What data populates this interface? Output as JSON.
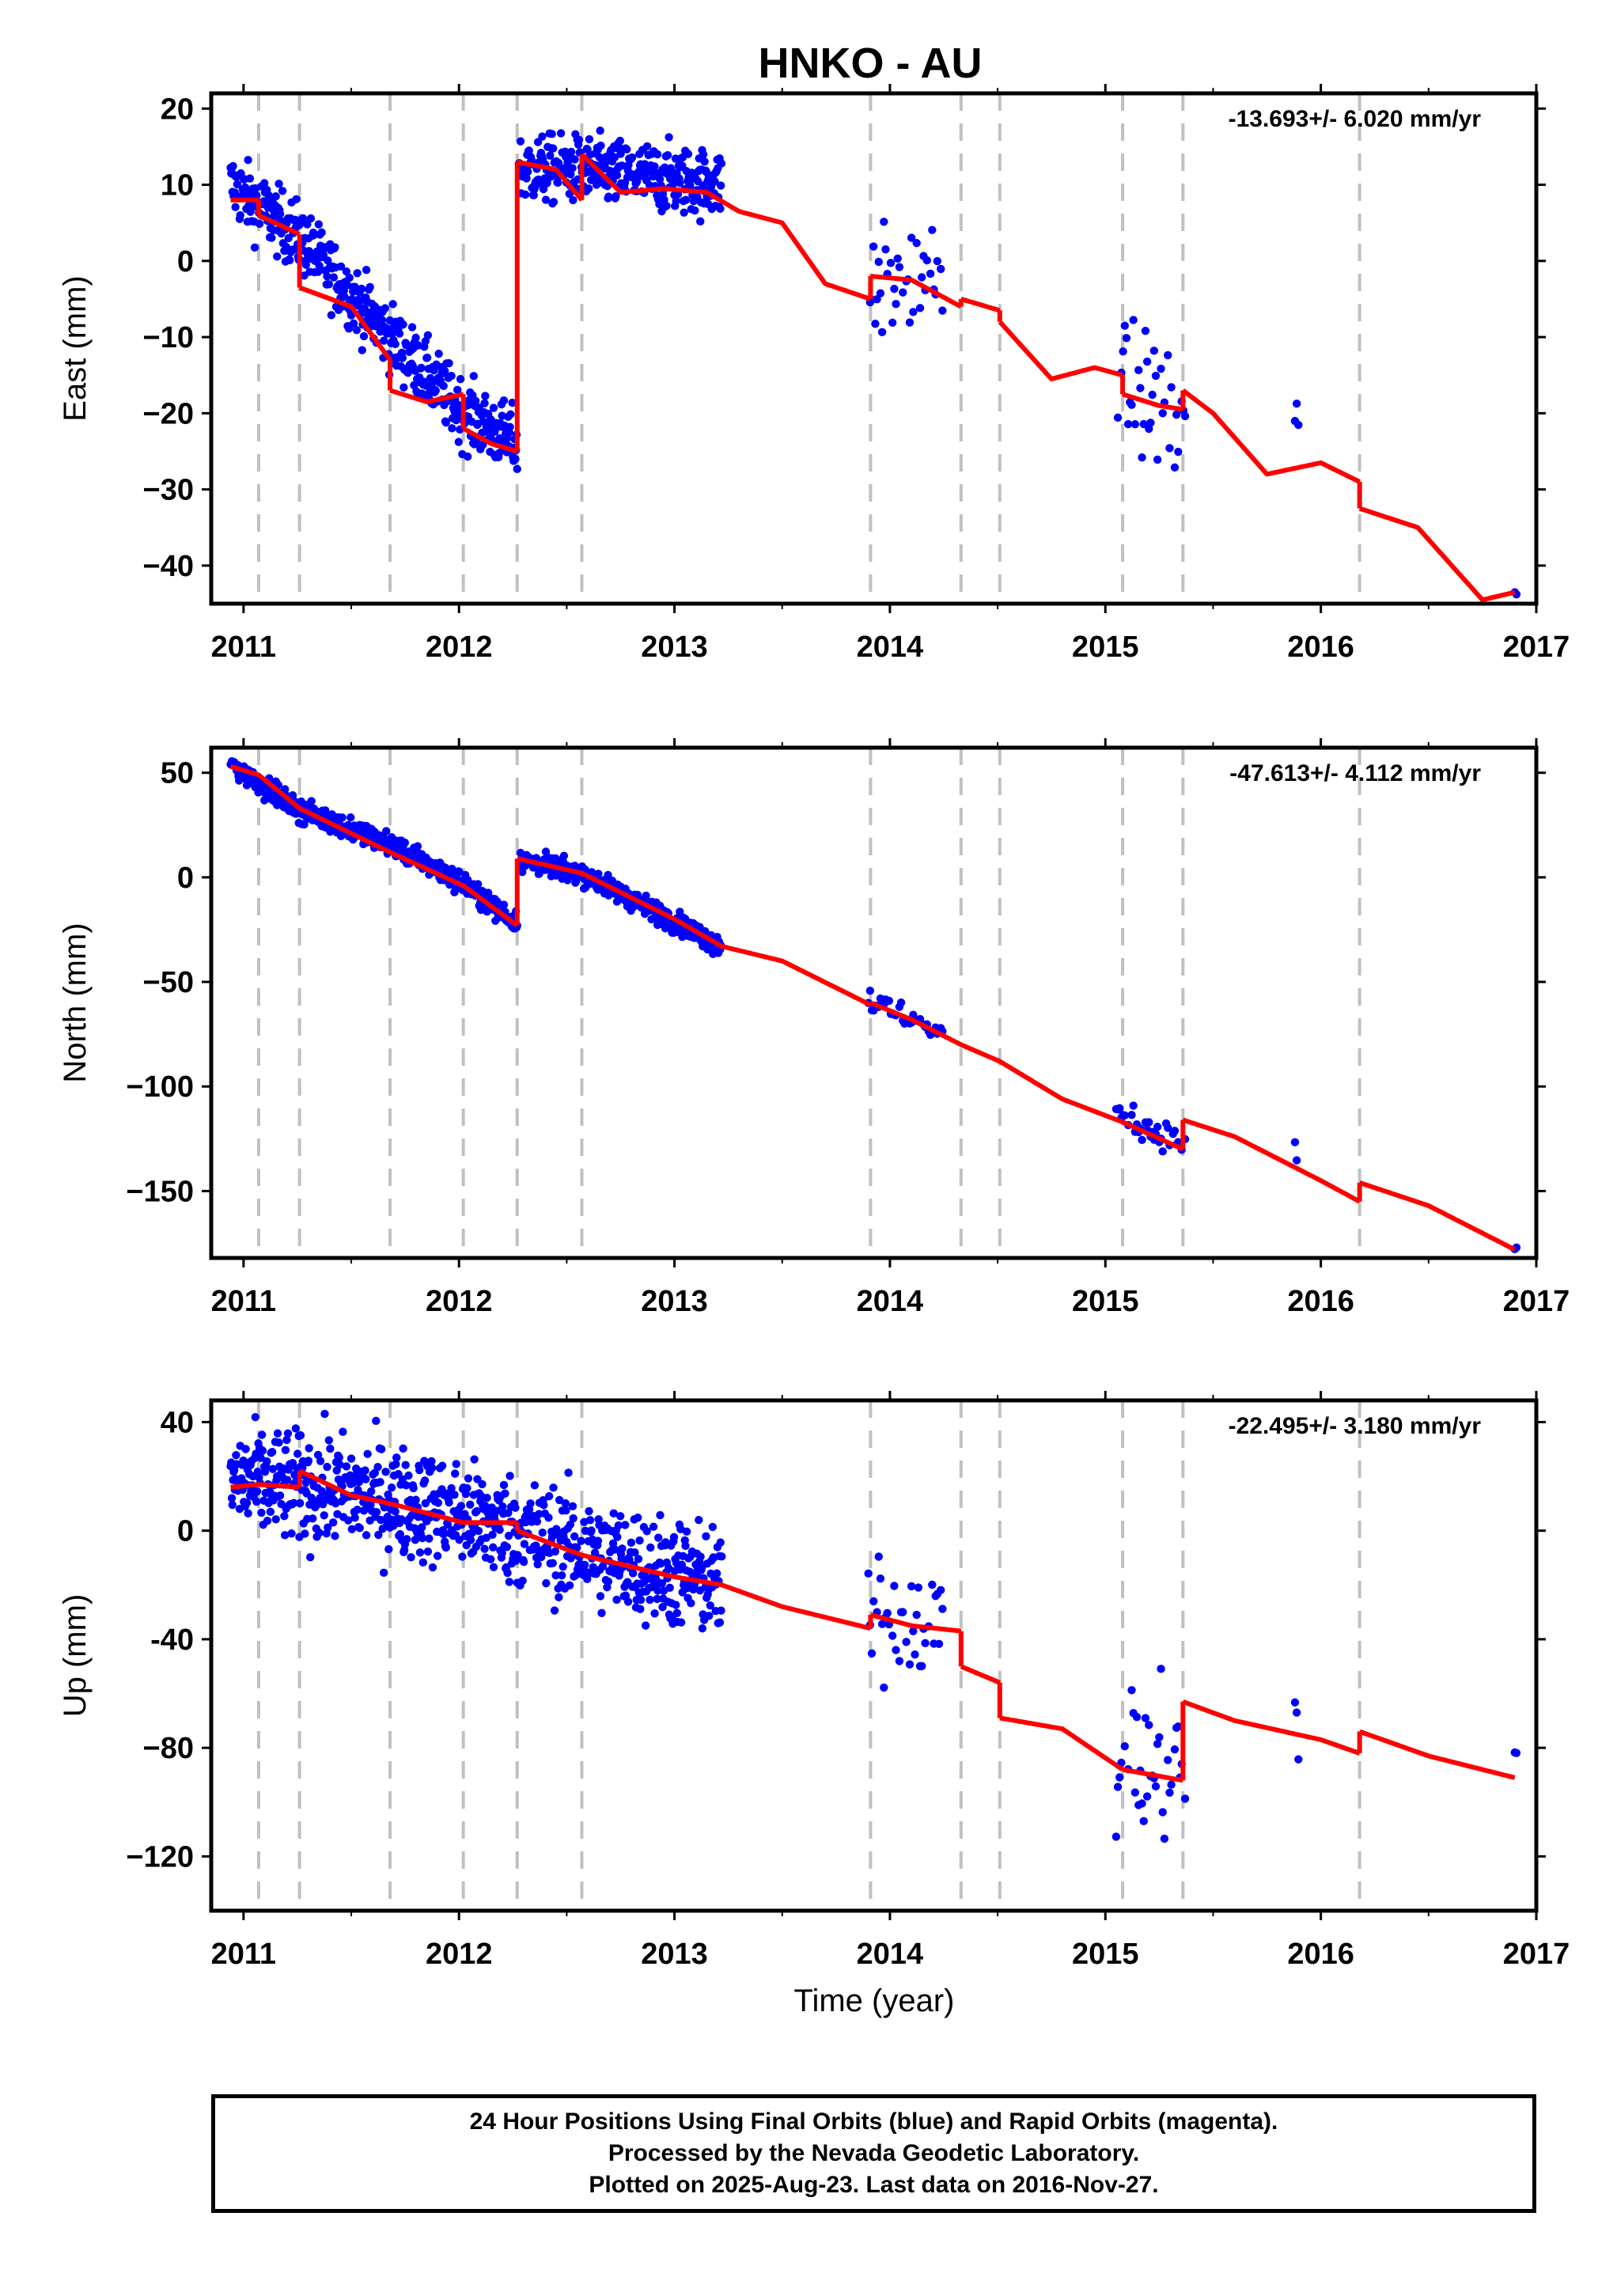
{
  "title": "HNKO - AU",
  "xlabel": "Time (year)",
  "footer": {
    "lines": [
      "24 Hour Positions Using Final Orbits (blue) and Rapid Orbits (magenta).",
      "Processed by the Nevada Geodetic Laboratory.",
      "Plotted on 2025-Aug-23. Last data on 2016-Nov-27."
    ]
  },
  "colors": {
    "data": "#0000ff",
    "model": "#ff0000",
    "event_lines": "#c0c0c0",
    "frame": "#000000"
  },
  "chart_data": [
    {
      "type": "scatter",
      "panel": "east",
      "ylabel": "East (mm)",
      "rate": "-13.693+/- 6.020 mm/yr",
      "xlim": [
        2010.85,
        2017.0
      ],
      "ylim": [
        -45,
        22
      ],
      "xticks": [
        "2011",
        "2012",
        "2013",
        "2014",
        "2015",
        "2016",
        "2017"
      ],
      "yticks": [
        "20",
        "10",
        "0",
        "−10",
        "−20",
        "−30",
        "−40"
      ],
      "ytick_values": [
        20,
        10,
        0,
        -10,
        -20,
        -30,
        -40
      ],
      "event_years": [
        2011.07,
        2011.26,
        2011.68,
        2012.02,
        2012.27,
        2012.57,
        2013.91,
        2014.33,
        2014.51,
        2015.08,
        2015.36,
        2016.18
      ],
      "segments": [
        {
          "x": [
            2010.94,
            2011.26,
            2011.68,
            2012.02,
            2012.27
          ],
          "y": [
            10,
            3,
            -10,
            -20,
            -24
          ],
          "spread": 2.2
        },
        {
          "x": [
            2012.28,
            2012.55,
            2013.22
          ],
          "y": [
            12,
            12,
            10
          ],
          "spread": 2.2
        },
        {
          "x": [
            2013.9,
            2014.25
          ],
          "y": [
            -3,
            -3
          ],
          "spread": 3.5,
          "sparse": true
        },
        {
          "x": [
            2015.05,
            2015.37
          ],
          "y": [
            -15,
            -22
          ],
          "spread": 4.5,
          "sparse": true
        },
        {
          "x": [
            2015.88,
            2015.9
          ],
          "y": [
            -25,
            -28
          ],
          "spread": 6,
          "sparse": true
        },
        {
          "x": [
            2016.9,
            2016.91
          ],
          "y": [
            -43.5,
            -43.5
          ],
          "spread": 0.2,
          "sparse": true
        }
      ],
      "model": [
        {
          "x": [
            2010.94,
            2011.07
          ],
          "y": [
            8,
            8
          ]
        },
        {
          "x": [
            2011.07,
            2011.26
          ],
          "y": [
            6,
            3.5
          ]
        },
        {
          "x": [
            2011.26,
            2011.5,
            2011.68
          ],
          "y": [
            -3.5,
            -6,
            -13
          ]
        },
        {
          "x": [
            2011.68,
            2011.85,
            2012.02
          ],
          "y": [
            -17,
            -18.5,
            -17.5
          ]
        },
        {
          "x": [
            2012.02,
            2012.15,
            2012.27
          ],
          "y": [
            -22,
            -24,
            -25
          ]
        },
        {
          "x": [
            2012.27,
            2012.45,
            2012.57
          ],
          "y": [
            13,
            12,
            8
          ]
        },
        {
          "x": [
            2012.57,
            2012.75,
            2012.95,
            2013.15,
            2013.3,
            2013.5,
            2013.7,
            2013.91
          ],
          "y": [
            14,
            9,
            9.5,
            9,
            6.5,
            5,
            -3,
            -5
          ]
        },
        {
          "x": [
            2013.91,
            2014.1,
            2014.33
          ],
          "y": [
            -2,
            -2.5,
            -6
          ]
        },
        {
          "x": [
            2014.33,
            2014.51
          ],
          "y": [
            -5,
            -6.5
          ]
        },
        {
          "x": [
            2014.51,
            2014.75,
            2014.95,
            2015.08
          ],
          "y": [
            -8,
            -15.5,
            -14,
            -15
          ]
        },
        {
          "x": [
            2015.08,
            2015.25,
            2015.36
          ],
          "y": [
            -17.5,
            -19,
            -19.5
          ]
        },
        {
          "x": [
            2015.36,
            2015.5,
            2015.75,
            2016.0,
            2016.18
          ],
          "y": [
            -17,
            -20,
            -28,
            -26.5,
            -29
          ]
        },
        {
          "x": [
            2016.18,
            2016.45,
            2016.75,
            2016.9
          ],
          "y": [
            -32.5,
            -35,
            -44.5,
            -43.5
          ]
        }
      ]
    },
    {
      "type": "scatter",
      "panel": "north",
      "ylabel": "North (mm)",
      "rate": "-47.613+/- 4.112 mm/yr",
      "xlim": [
        2010.85,
        2017.0
      ],
      "ylim": [
        -182,
        62
      ],
      "xticks": [
        "2011",
        "2012",
        "2013",
        "2014",
        "2015",
        "2016",
        "2017"
      ],
      "yticks": [
        "50",
        "0",
        "−50",
        "−100",
        "−150"
      ],
      "ytick_values": [
        50,
        0,
        -50,
        -100,
        -150
      ],
      "event_years": [
        2011.07,
        2011.26,
        2011.68,
        2012.02,
        2012.27,
        2012.57,
        2013.91,
        2014.33,
        2014.51,
        2015.08,
        2015.36,
        2016.18
      ],
      "segments": [
        {
          "x": [
            2010.94,
            2011.26,
            2011.68,
            2012.02,
            2012.27
          ],
          "y": [
            54,
            32,
            16,
            -3,
            -22
          ],
          "spread": 2.5
        },
        {
          "x": [
            2012.28,
            2012.57,
            2013.22
          ],
          "y": [
            8,
            2,
            -33
          ],
          "spread": 2.5
        },
        {
          "x": [
            2013.9,
            2014.25
          ],
          "y": [
            -58,
            -76
          ],
          "spread": 3,
          "sparse": true
        },
        {
          "x": [
            2015.05,
            2015.37
          ],
          "y": [
            -112,
            -128
          ],
          "spread": 3.5,
          "sparse": true
        },
        {
          "x": [
            2015.88,
            2015.9
          ],
          "y": [
            -132,
            -140
          ],
          "spread": 4,
          "sparse": true
        },
        {
          "x": [
            2016.9,
            2016.91
          ],
          "y": [
            -178,
            -178
          ],
          "spread": 0.5,
          "sparse": true
        }
      ],
      "model": [
        {
          "x": [
            2010.94,
            2011.07,
            2011.26,
            2011.68,
            2012.02,
            2012.27
          ],
          "y": [
            53,
            49,
            33,
            12,
            -4,
            -23
          ]
        },
        {
          "x": [
            2012.27,
            2012.57,
            2013.0,
            2013.22,
            2013.5,
            2013.91
          ],
          "y": [
            9,
            2,
            -20,
            -33,
            -40,
            -61
          ]
        },
        {
          "x": [
            2013.91,
            2014.1,
            2014.33,
            2014.51,
            2014.8,
            2015.08
          ],
          "y": [
            -60,
            -68,
            -80,
            -88,
            -106,
            -117
          ]
        },
        {
          "x": [
            2015.08,
            2015.36
          ],
          "y": [
            -117,
            -130
          ]
        },
        {
          "x": [
            2015.36,
            2015.6,
            2016.0,
            2016.18
          ],
          "y": [
            -116,
            -124,
            -145,
            -155
          ]
        },
        {
          "x": [
            2016.18,
            2016.5,
            2016.9
          ],
          "y": [
            -146,
            -157,
            -178
          ]
        }
      ]
    },
    {
      "type": "scatter",
      "panel": "up",
      "ylabel": "Up (mm)",
      "rate": "-22.495+/- 3.180 mm/yr",
      "xlim": [
        2010.85,
        2017.0
      ],
      "ylim": [
        -140,
        48
      ],
      "xticks": [
        "2011",
        "2012",
        "2013",
        "2014",
        "2015",
        "2016",
        "2017"
      ],
      "yticks": [
        "40",
        "0",
        "-40",
        "−80",
        "−120"
      ],
      "ytick_values": [
        40,
        0,
        -40,
        -80,
        -120
      ],
      "event_years": [
        2011.07,
        2011.26,
        2011.68,
        2012.02,
        2012.27,
        2012.57,
        2013.91,
        2014.33,
        2014.51,
        2015.08,
        2015.36,
        2016.18
      ],
      "segments": [
        {
          "x": [
            2010.94,
            2011.5,
            2012.0,
            2012.6,
            2013.22
          ],
          "y": [
            18,
            14,
            6,
            -8,
            -20
          ],
          "spread": 10
        },
        {
          "x": [
            2013.9,
            2014.25
          ],
          "y": [
            -30,
            -35
          ],
          "spread": 10,
          "sparse": true
        },
        {
          "x": [
            2015.05,
            2015.37
          ],
          "y": [
            -85,
            -90
          ],
          "spread": 15,
          "sparse": true
        },
        {
          "x": [
            2015.88,
            2015.9
          ],
          "y": [
            -68,
            -78
          ],
          "spread": 12,
          "sparse": true
        },
        {
          "x": [
            2016.9,
            2016.91
          ],
          "y": [
            -82,
            -82
          ],
          "spread": 0.5,
          "sparse": true
        }
      ],
      "model": [
        {
          "x": [
            2010.94,
            2011.07,
            2011.26
          ],
          "y": [
            16,
            17,
            16
          ]
        },
        {
          "x": [
            2011.26,
            2011.5,
            2011.68,
            2012.02,
            2012.27
          ],
          "y": [
            22,
            13,
            10,
            3,
            3
          ]
        },
        {
          "x": [
            2012.27,
            2012.57,
            2013.0,
            2013.22,
            2013.5,
            2013.91
          ],
          "y": [
            0,
            -9,
            -17,
            -20,
            -28,
            -36
          ]
        },
        {
          "x": [
            2013.91,
            2014.1,
            2014.33
          ],
          "y": [
            -31,
            -35,
            -37
          ]
        },
        {
          "x": [
            2014.33,
            2014.51
          ],
          "y": [
            -50,
            -56
          ]
        },
        {
          "x": [
            2014.51,
            2014.8,
            2015.08
          ],
          "y": [
            -69,
            -73,
            -88
          ]
        },
        {
          "x": [
            2015.08,
            2015.36
          ],
          "y": [
            -88,
            -92
          ]
        },
        {
          "x": [
            2015.36,
            2015.6,
            2016.0,
            2016.18
          ],
          "y": [
            -63,
            -70,
            -77,
            -82
          ]
        },
        {
          "x": [
            2016.18,
            2016.5,
            2016.9
          ],
          "y": [
            -74,
            -83,
            -91
          ]
        }
      ]
    }
  ]
}
